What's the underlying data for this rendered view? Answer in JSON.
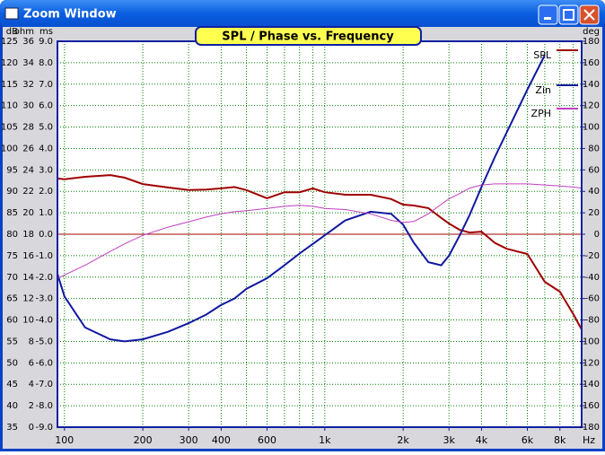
{
  "window_title": "Zoom Window",
  "chart_data": {
    "type": "line",
    "title": "SPL / Phase vs. Frequency",
    "log_x": true,
    "grid": true,
    "zero_line": true,
    "x_unit": "Hz",
    "xlim": [
      94,
      9700
    ],
    "xticks": [
      100,
      200,
      300,
      400,
      600,
      {
        "value": 1000,
        "label": "1k"
      },
      {
        "value": 2000,
        "label": "2k"
      },
      {
        "value": 3000,
        "label": "3k"
      },
      {
        "value": 4000,
        "label": "4k"
      },
      {
        "value": 6000,
        "label": "6k"
      },
      {
        "value": 8000,
        "label": "8k"
      }
    ],
    "x_minor_ticks": [
      100,
      200,
      300,
      400,
      500,
      600,
      700,
      800,
      900,
      1000,
      2000,
      3000,
      4000,
      5000,
      6000,
      7000,
      8000,
      9000
    ],
    "axes": [
      {
        "label": "dB",
        "lim": [
          35,
          125
        ],
        "ticks": [
          125,
          120,
          115,
          110,
          105,
          100,
          95,
          90,
          85,
          80,
          75,
          70,
          65,
          60,
          55,
          50,
          45,
          40,
          35
        ]
      },
      {
        "label": "ohm",
        "lim": [
          0,
          36
        ],
        "ticks": [
          36,
          34,
          32,
          30,
          28,
          26,
          24,
          22,
          20,
          18,
          16,
          14,
          12,
          10,
          8,
          6,
          4,
          2,
          0
        ]
      },
      {
        "label": "ms",
        "lim": [
          -9,
          9
        ],
        "ticks": [
          {
            "value": 9,
            "label": "9.0"
          },
          {
            "value": 8,
            "label": "8.0"
          },
          {
            "value": 7,
            "label": "7.0"
          },
          {
            "value": 6,
            "label": "6.0"
          },
          {
            "value": 5,
            "label": "5.0"
          },
          {
            "value": 4,
            "label": "4.0"
          },
          {
            "value": 3,
            "label": "3.0"
          },
          {
            "value": 2,
            "label": "2.0"
          },
          {
            "value": 1,
            "label": "1.0"
          },
          {
            "value": 0,
            "label": "0.0"
          },
          {
            "value": -1,
            "label": "-1.0"
          },
          {
            "value": -2,
            "label": "-2.0"
          },
          {
            "value": -3,
            "label": "-3.0"
          },
          {
            "value": -4,
            "label": "-4.0"
          },
          {
            "value": -5,
            "label": "-5.0"
          },
          {
            "value": -6,
            "label": "-6.0"
          },
          {
            "value": -7,
            "label": "-7.0"
          },
          {
            "value": -8,
            "label": "-8.0"
          },
          {
            "value": -9,
            "label": "-9.0"
          }
        ]
      },
      {
        "label": "deg",
        "lim": [
          -180,
          180
        ],
        "ticks": [
          180,
          160,
          140,
          120,
          100,
          80,
          60,
          40,
          20,
          0,
          -20,
          -40,
          -60,
          -80,
          -100,
          -120,
          -140,
          -160,
          -180
        ]
      }
    ],
    "x": [
      94,
      100,
      120,
      150,
      170,
      200,
      250,
      300,
      350,
      400,
      450,
      500,
      600,
      700,
      800,
      900,
      1000,
      1200,
      1500,
      1800,
      2000,
      2200,
      2500,
      2800,
      3000,
      3300,
      3600,
      4000,
      4500,
      5000,
      6000,
      7000,
      8000,
      9000,
      9700
    ],
    "series": [
      {
        "name": "SPL",
        "color": "#a00000",
        "axis": 0,
        "values": [
          93,
          92.8,
          93.4,
          93.8,
          93.2,
          91.7,
          90.9,
          90.3,
          90.4,
          90.7,
          91,
          90.3,
          88.4,
          89.8,
          89.8,
          90.7,
          89.8,
          89.2,
          89.2,
          88.2,
          86.9,
          86.7,
          86.1,
          83.8,
          82.5,
          81,
          80.4,
          80.6,
          78,
          76.6,
          75.4,
          68.9,
          66.6,
          61.4,
          57.8
        ]
      },
      {
        "name": "Zin",
        "color": "#1018a0",
        "axis": 1,
        "values": [
          14.3,
          12.2,
          9.3,
          8.2,
          8,
          8.2,
          8.9,
          9.7,
          10.5,
          11.4,
          12,
          12.9,
          13.9,
          15.1,
          16.2,
          17.1,
          17.9,
          19.3,
          20.1,
          19.9,
          18.9,
          17.2,
          15.4,
          15.1,
          16,
          17.9,
          19.8,
          22.4,
          25.2,
          27.5,
          31.5,
          34.7,
          null,
          null,
          null
        ]
      },
      {
        "name": "ZPH",
        "color": "#c040c0",
        "axis": 3,
        "values": [
          -41,
          -38,
          -29,
          -16,
          -9,
          -1,
          6.6,
          11.6,
          16,
          19,
          21,
          22,
          24,
          26,
          27,
          26,
          24,
          23,
          19,
          13,
          11,
          12,
          19,
          28,
          33,
          38,
          43,
          46,
          47,
          47,
          47,
          46,
          45,
          44,
          43
        ]
      }
    ]
  }
}
